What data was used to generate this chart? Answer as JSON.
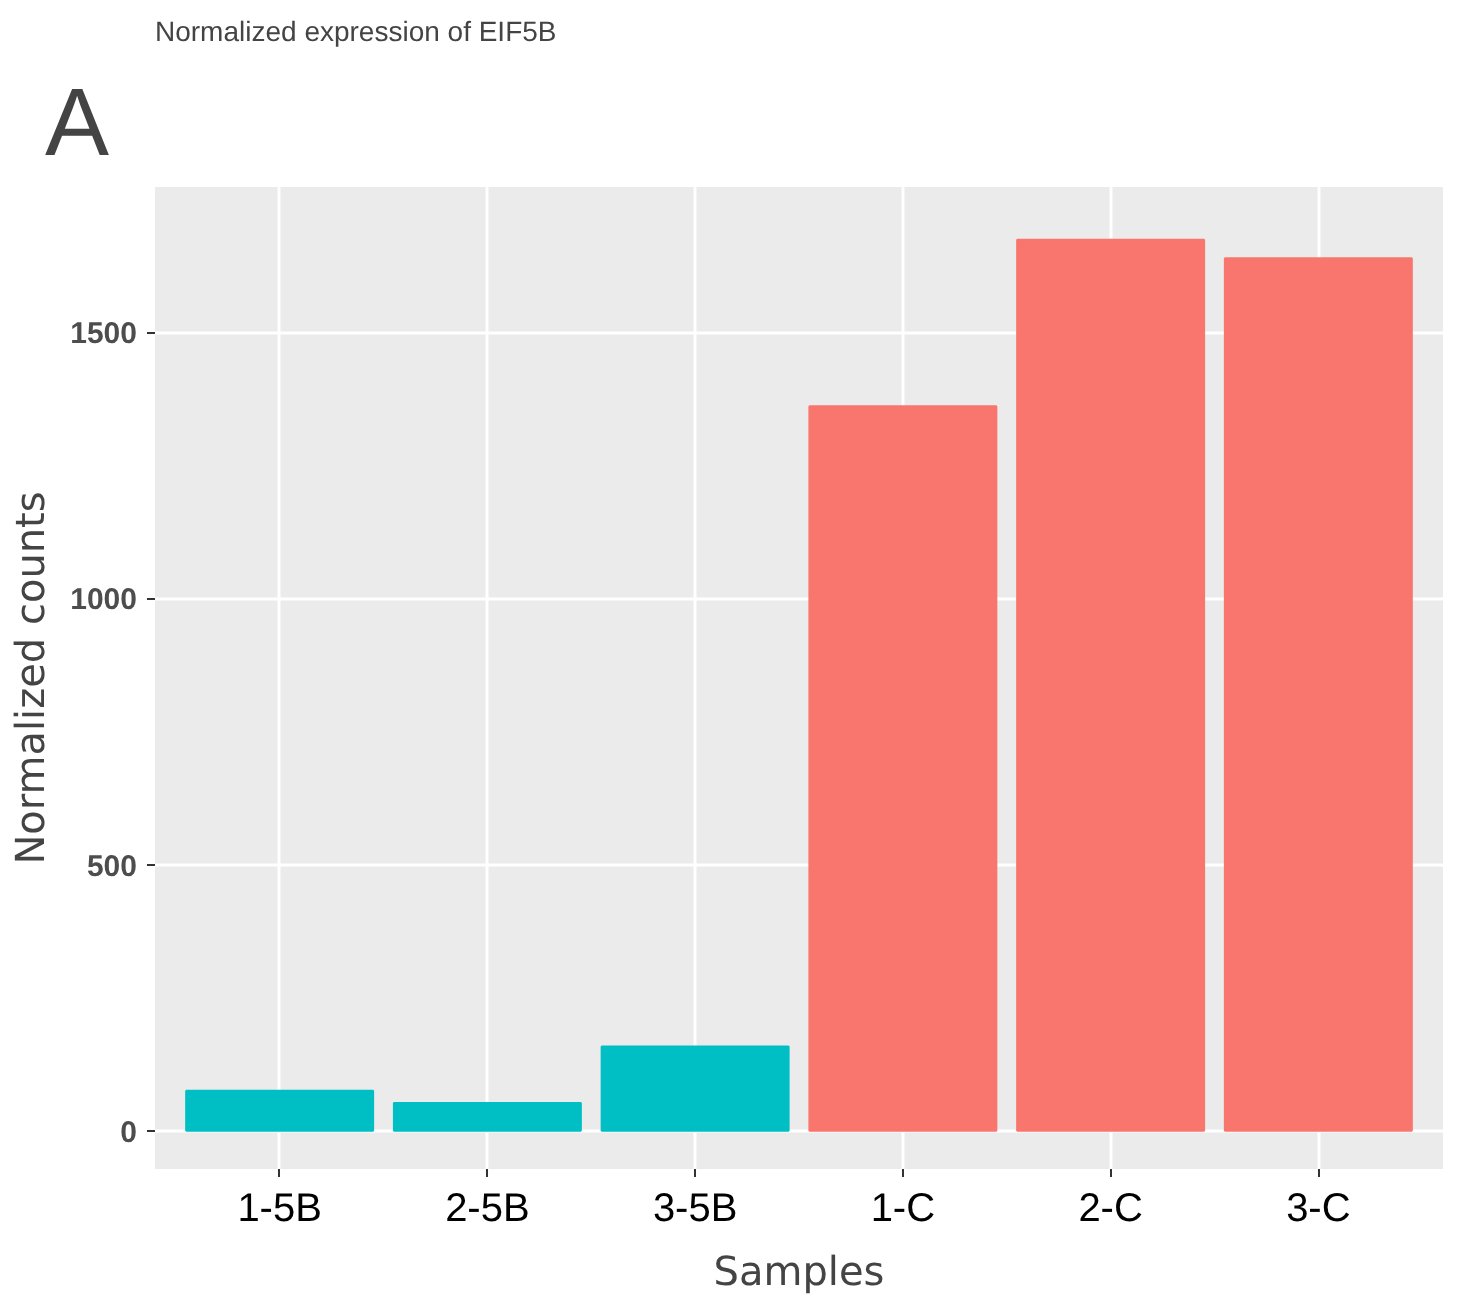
{
  "chart_data": {
    "type": "bar",
    "title": "Normalized expression of EIF5B",
    "xlabel": "Samples",
    "ylabel": "Normalized counts",
    "categories": [
      "1-5B",
      "2-5B",
      "3-5B",
      "1-C",
      "2-C",
      "3-C"
    ],
    "values": [
      75,
      52,
      158,
      1361,
      1674,
      1639
    ],
    "colors": [
      "#00bfc4",
      "#00bfc4",
      "#00bfc4",
      "#f8766d",
      "#f8766d",
      "#f8766d"
    ],
    "ylim": [
      -72,
      1773
    ],
    "yticks": [
      0,
      500,
      1000,
      1500
    ],
    "grid": true,
    "annotations": [
      "A"
    ]
  }
}
